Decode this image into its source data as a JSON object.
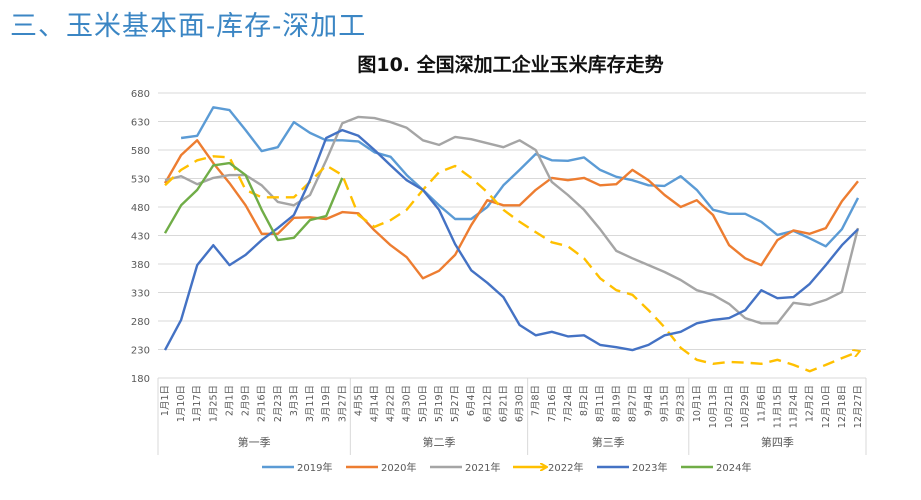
{
  "heading": "三、玉米基本面-库存-深加工",
  "chart_data": {
    "type": "line",
    "title": "图10. 全国深加工企业玉米库存走势",
    "xlabel": "",
    "ylabel": "",
    "ylim": [
      180,
      680
    ],
    "yticks": [
      180,
      230,
      280,
      330,
      380,
      430,
      480,
      530,
      580,
      630,
      680
    ],
    "grid": true,
    "legend_position": "bottom",
    "categories": [
      "1月1日",
      "1月10日",
      "1月17日",
      "1月25日",
      "2月1日",
      "2月9日",
      "2月16日",
      "2月23日",
      "3月3日",
      "3月11日",
      "3月19日",
      "3月27日",
      "4月5日",
      "4月14日",
      "4月22日",
      "4月30日",
      "5月10日",
      "5月19日",
      "5月27日",
      "6月4日",
      "6月12日",
      "6月21日",
      "6月30日",
      "7月8日",
      "7月16日",
      "7月24日",
      "8月2日",
      "8月11日",
      "8月19日",
      "8月27日",
      "9月4日",
      "9月15日",
      "9月23日",
      "10月1日",
      "10月13日",
      "10月21日",
      "10月29日",
      "11月6日",
      "11月15日",
      "11月24日",
      "12月2日",
      "12月10日",
      "12月18日",
      "12月27日"
    ],
    "quarters": [
      {
        "label": "第一季",
        "from": 0,
        "to": 11
      },
      {
        "label": "第二季",
        "from": 12,
        "to": 22
      },
      {
        "label": "第三季",
        "from": 23,
        "to": 32
      },
      {
        "label": "第四季",
        "from": 33,
        "to": 43
      }
    ],
    "series": [
      {
        "name": "2019年",
        "color": "#5b9bd5",
        "dashed": false,
        "values": [
          null,
          601,
          605,
          655,
          650,
          615,
          578,
          585,
          629,
          610,
          597,
          597,
          595,
          576,
          568,
          536,
          510,
          483,
          459,
          459,
          480,
          518,
          545,
          573,
          562,
          561,
          567,
          545,
          533,
          527,
          518,
          517,
          534,
          510,
          475,
          468,
          468,
          454,
          431,
          438,
          425,
          411,
          441,
          496
        ]
      },
      {
        "name": "2020年",
        "color": "#ed7d31",
        "dashed": false,
        "values": [
          522,
          571,
          597,
          557,
          522,
          483,
          433,
          433,
          461,
          462,
          459,
          471,
          469,
          439,
          413,
          392,
          355,
          368,
          396,
          448,
          492,
          483,
          483,
          510,
          531,
          527,
          531,
          518,
          520,
          545,
          527,
          501,
          480,
          492,
          466,
          413,
          390,
          378,
          422,
          439,
          433,
          443,
          490,
          525
        ]
      },
      {
        "name": "2021年",
        "color": "#a5a5a5",
        "dashed": false,
        "values": [
          527,
          534,
          520,
          531,
          536,
          536,
          518,
          489,
          483,
          501,
          562,
          627,
          638,
          636,
          629,
          619,
          597,
          589,
          603,
          599,
          592,
          585,
          597,
          580,
          524,
          501,
          475,
          441,
          403,
          390,
          378,
          366,
          352,
          334,
          326,
          310,
          285,
          276,
          276,
          312,
          308,
          317,
          331,
          443
        ]
      },
      {
        "name": "2022年",
        "color": "#ffc000",
        "dashed": true,
        "values": [
          518,
          545,
          562,
          569,
          567,
          510,
          497,
          497,
          497,
          524,
          553,
          536,
          466,
          445,
          457,
          475,
          510,
          541,
          552,
          531,
          506,
          475,
          454,
          436,
          418,
          411,
          390,
          355,
          334,
          326,
          299,
          269,
          233,
          212,
          205,
          208,
          207,
          205,
          212,
          203,
          192,
          203,
          215,
          226
        ]
      },
      {
        "name": "2023年",
        "color": "#4472c4",
        "dashed": false,
        "values": [
          229,
          282,
          378,
          413,
          378,
          396,
          422,
          443,
          466,
          527,
          601,
          615,
          605,
          580,
          553,
          527,
          510,
          475,
          415,
          369,
          347,
          322,
          273,
          255,
          261,
          253,
          255,
          238,
          234,
          229,
          238,
          255,
          261,
          276,
          282,
          285,
          299,
          334,
          320,
          322,
          345,
          378,
          413,
          441
        ]
      },
      {
        "name": "2024年",
        "color": "#70ad47",
        "dashed": false,
        "values": [
          434,
          483,
          510,
          553,
          557,
          536,
          475,
          422,
          426,
          457,
          464,
          531,
          null,
          null,
          null,
          null,
          null,
          null,
          null,
          null,
          null,
          null,
          null,
          null,
          null,
          null,
          null,
          null,
          null,
          null,
          null,
          null,
          null,
          null,
          null,
          null,
          null,
          null,
          null,
          null,
          null,
          null,
          null,
          null
        ]
      }
    ]
  }
}
